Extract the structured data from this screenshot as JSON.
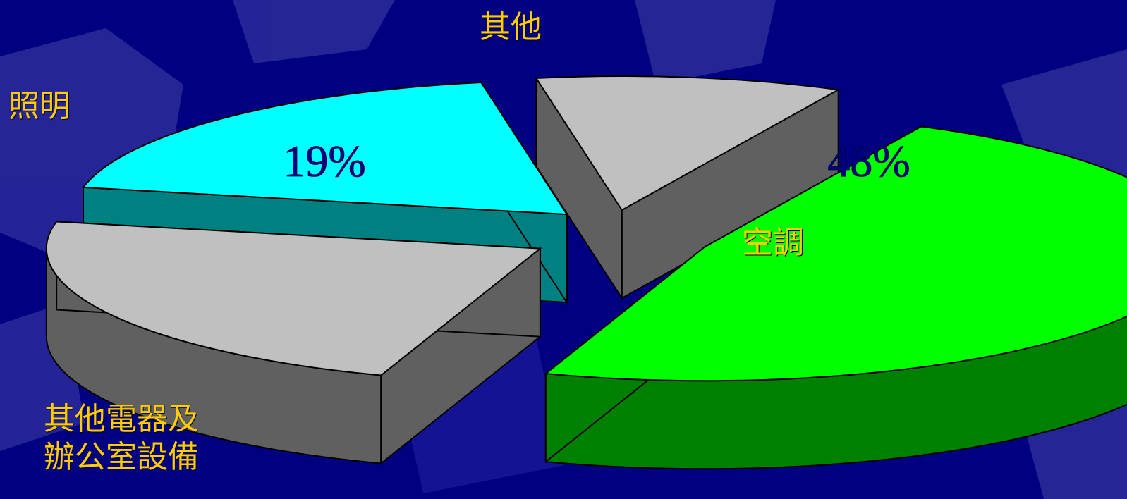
{
  "chart_data": {
    "type": "pie",
    "style": "3d-exploded",
    "slices": [
      {
        "label": "空調",
        "value": 48,
        "value_label": "48%",
        "color": "#00FF00"
      },
      {
        "label": "其他電器及\n辦公室設備",
        "value": 23,
        "value_label": "",
        "color": "#C0C0C0"
      },
      {
        "label": "照明",
        "value": 19,
        "value_label": "19%",
        "color": "#00FFFF"
      },
      {
        "label": "其他",
        "value": 10,
        "value_label": "",
        "color": "#C0C0C0"
      }
    ],
    "value_label_color": "#000080",
    "category_label_color": "#FFCC00",
    "background_color": "#000080"
  }
}
